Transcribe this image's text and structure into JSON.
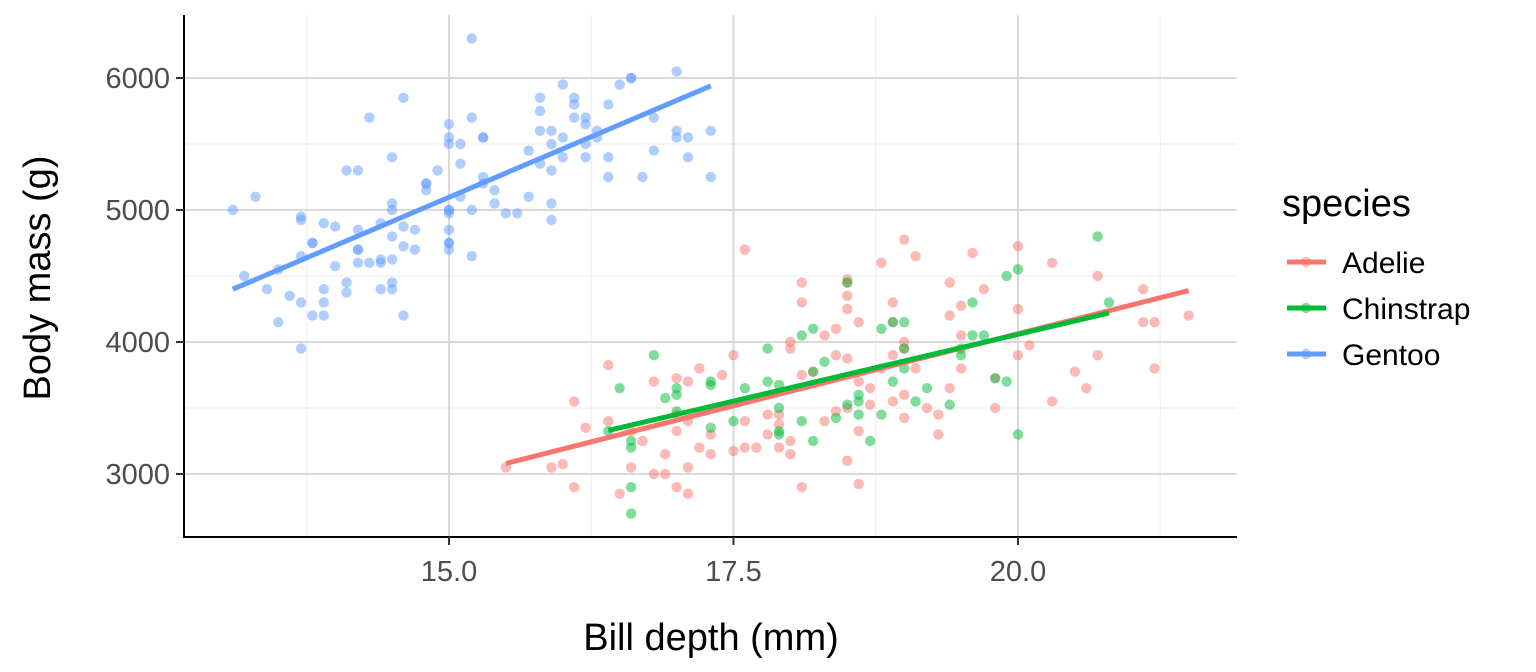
{
  "chart_data": {
    "type": "scatter",
    "title": "",
    "xlabel": "Bill depth (mm)",
    "ylabel": "Body mass (g)",
    "xlim": [
      12.7,
      21.7
    ],
    "ylim": [
      2500,
      6500
    ],
    "x_ticks": [
      15.0,
      17.5,
      20.0
    ],
    "x_tick_labels": [
      "15.0",
      "17.5",
      "20.0"
    ],
    "y_ticks": [
      3000,
      4000,
      5000,
      6000
    ],
    "y_tick_labels": [
      "3000",
      "4000",
      "5000",
      "6000"
    ],
    "grid": true,
    "legend": {
      "title": "species",
      "placement": "right"
    },
    "series": [
      {
        "name": "Adelie",
        "color": "#F8766D",
        "fit": {
          "x": [
            15.5,
            21.5
          ],
          "y": [
            3080,
            4390
          ]
        },
        "points": [
          [
            15.5,
            3050
          ],
          [
            15.9,
            3050
          ],
          [
            16.0,
            3075
          ],
          [
            16.1,
            2900
          ],
          [
            16.1,
            3550
          ],
          [
            16.2,
            3350
          ],
          [
            16.4,
            3400
          ],
          [
            16.4,
            3825
          ],
          [
            16.5,
            2850
          ],
          [
            16.6,
            3050
          ],
          [
            16.6,
            3325
          ],
          [
            16.7,
            3250
          ],
          [
            16.8,
            3000
          ],
          [
            16.8,
            3700
          ],
          [
            16.9,
            3150
          ],
          [
            16.9,
            3000
          ],
          [
            17.0,
            3325
          ],
          [
            17.0,
            3450
          ],
          [
            17.0,
            3725
          ],
          [
            17.0,
            2900
          ],
          [
            17.1,
            3050
          ],
          [
            17.1,
            3400
          ],
          [
            17.1,
            3700
          ],
          [
            17.1,
            2850
          ],
          [
            17.2,
            3200
          ],
          [
            17.2,
            3800
          ],
          [
            17.3,
            3150
          ],
          [
            17.3,
            3300
          ],
          [
            17.4,
            3750
          ],
          [
            17.5,
            3175
          ],
          [
            17.5,
            3900
          ],
          [
            17.6,
            3200
          ],
          [
            17.6,
            3400
          ],
          [
            17.6,
            4700
          ],
          [
            17.7,
            3200
          ],
          [
            17.8,
            3300
          ],
          [
            17.8,
            3450
          ],
          [
            17.9,
            3200
          ],
          [
            17.9,
            3375
          ],
          [
            17.9,
            3450
          ],
          [
            18.0,
            3250
          ],
          [
            18.0,
            3150
          ],
          [
            18.0,
            3950
          ],
          [
            18.0,
            4000
          ],
          [
            18.1,
            2900
          ],
          [
            18.1,
            3750
          ],
          [
            18.1,
            4300
          ],
          [
            18.1,
            4450
          ],
          [
            18.2,
            3775
          ],
          [
            18.3,
            3400
          ],
          [
            18.3,
            4050
          ],
          [
            18.4,
            3475
          ],
          [
            18.4,
            3900
          ],
          [
            18.4,
            4100
          ],
          [
            18.5,
            3100
          ],
          [
            18.5,
            3500
          ],
          [
            18.5,
            3875
          ],
          [
            18.5,
            4250
          ],
          [
            18.5,
            4450
          ],
          [
            18.5,
            4475
          ],
          [
            18.5,
            4350
          ],
          [
            18.6,
            2925
          ],
          [
            18.6,
            3325
          ],
          [
            18.6,
            3700
          ],
          [
            18.6,
            4150
          ],
          [
            18.7,
            3525
          ],
          [
            18.7,
            3650
          ],
          [
            18.8,
            3800
          ],
          [
            18.8,
            4600
          ],
          [
            18.9,
            3550
          ],
          [
            18.9,
            3900
          ],
          [
            18.9,
            4150
          ],
          [
            18.9,
            4300
          ],
          [
            19.0,
            3425
          ],
          [
            19.0,
            3600
          ],
          [
            19.0,
            3950
          ],
          [
            19.0,
            4000
          ],
          [
            19.0,
            4775
          ],
          [
            19.1,
            3800
          ],
          [
            19.1,
            4650
          ],
          [
            19.2,
            3500
          ],
          [
            19.3,
            3450
          ],
          [
            19.3,
            3300
          ],
          [
            19.4,
            3650
          ],
          [
            19.4,
            4200
          ],
          [
            19.4,
            4450
          ],
          [
            19.5,
            3800
          ],
          [
            19.5,
            4050
          ],
          [
            19.5,
            4275
          ],
          [
            19.6,
            4675
          ],
          [
            19.7,
            4400
          ],
          [
            19.8,
            3500
          ],
          [
            19.8,
            3725
          ],
          [
            20.0,
            3900
          ],
          [
            20.0,
            4250
          ],
          [
            20.0,
            4725
          ],
          [
            20.1,
            3975
          ],
          [
            20.3,
            3550
          ],
          [
            20.3,
            4600
          ],
          [
            20.5,
            3775
          ],
          [
            20.6,
            3650
          ],
          [
            20.7,
            3900
          ],
          [
            20.7,
            4500
          ],
          [
            21.1,
            4150
          ],
          [
            21.1,
            4400
          ],
          [
            21.2,
            3800
          ],
          [
            21.2,
            4150
          ],
          [
            21.5,
            4200
          ]
        ]
      },
      {
        "name": "Chinstrap",
        "color": "#00BA38",
        "fit": {
          "x": [
            16.4,
            20.8
          ],
          "y": [
            3330,
            4220
          ]
        },
        "points": [
          [
            16.4,
            3325
          ],
          [
            16.5,
            3650
          ],
          [
            16.6,
            2700
          ],
          [
            16.6,
            2900
          ],
          [
            16.6,
            3250
          ],
          [
            16.6,
            3200
          ],
          [
            16.8,
            3900
          ],
          [
            16.9,
            3575
          ],
          [
            17.0,
            3475
          ],
          [
            17.0,
            3650
          ],
          [
            17.0,
            3600
          ],
          [
            17.3,
            3350
          ],
          [
            17.3,
            3675
          ],
          [
            17.3,
            3700
          ],
          [
            17.5,
            3400
          ],
          [
            17.6,
            3650
          ],
          [
            17.8,
            3700
          ],
          [
            17.8,
            3950
          ],
          [
            17.9,
            3300
          ],
          [
            17.9,
            3325
          ],
          [
            17.9,
            3500
          ],
          [
            17.9,
            3675
          ],
          [
            18.1,
            3400
          ],
          [
            18.1,
            4050
          ],
          [
            18.2,
            3775
          ],
          [
            18.2,
            3250
          ],
          [
            18.2,
            4100
          ],
          [
            18.3,
            3850
          ],
          [
            18.4,
            3425
          ],
          [
            18.5,
            3525
          ],
          [
            18.5,
            4450
          ],
          [
            18.6,
            3550
          ],
          [
            18.6,
            3450
          ],
          [
            18.6,
            3600
          ],
          [
            18.7,
            3250
          ],
          [
            18.8,
            3450
          ],
          [
            18.8,
            4100
          ],
          [
            18.9,
            3700
          ],
          [
            18.9,
            4150
          ],
          [
            19.0,
            3800
          ],
          [
            19.0,
            3950
          ],
          [
            19.0,
            4150
          ],
          [
            19.1,
            3550
          ],
          [
            19.2,
            3650
          ],
          [
            19.4,
            3525
          ],
          [
            19.5,
            3900
          ],
          [
            19.5,
            3950
          ],
          [
            19.6,
            4300
          ],
          [
            19.6,
            4050
          ],
          [
            19.7,
            4050
          ],
          [
            19.8,
            3725
          ],
          [
            19.9,
            3700
          ],
          [
            19.9,
            4500
          ],
          [
            20.0,
            3300
          ],
          [
            20.0,
            4550
          ],
          [
            20.7,
            4800
          ],
          [
            20.8,
            4300
          ]
        ]
      },
      {
        "name": "Gentoo",
        "color": "#619CFF",
        "fit": {
          "x": [
            13.1,
            17.3
          ],
          "y": [
            4400,
            5940
          ]
        },
        "points": [
          [
            13.1,
            5000
          ],
          [
            13.2,
            4500
          ],
          [
            13.3,
            5100
          ],
          [
            13.4,
            4400
          ],
          [
            13.5,
            4550
          ],
          [
            13.5,
            4150
          ],
          [
            13.6,
            4350
          ],
          [
            13.7,
            4300
          ],
          [
            13.7,
            4650
          ],
          [
            13.7,
            3950
          ],
          [
            13.7,
            4950
          ],
          [
            13.7,
            4925
          ],
          [
            13.8,
            4750
          ],
          [
            13.8,
            4750
          ],
          [
            13.8,
            4200
          ],
          [
            13.9,
            4900
          ],
          [
            13.9,
            4400
          ],
          [
            13.9,
            4300
          ],
          [
            13.9,
            4200
          ],
          [
            14.0,
            4575
          ],
          [
            14.0,
            4875
          ],
          [
            14.1,
            4375
          ],
          [
            14.1,
            4450
          ],
          [
            14.1,
            5300
          ],
          [
            14.2,
            4600
          ],
          [
            14.2,
            4700
          ],
          [
            14.2,
            4850
          ],
          [
            14.2,
            5300
          ],
          [
            14.2,
            4700
          ],
          [
            14.3,
            4600
          ],
          [
            14.3,
            5700
          ],
          [
            14.4,
            4400
          ],
          [
            14.4,
            4625
          ],
          [
            14.4,
            4600
          ],
          [
            14.4,
            4900
          ],
          [
            14.5,
            4450
          ],
          [
            14.5,
            4400
          ],
          [
            14.5,
            4800
          ],
          [
            14.5,
            4625
          ],
          [
            14.5,
            5000
          ],
          [
            14.5,
            5050
          ],
          [
            14.5,
            5400
          ],
          [
            14.6,
            4200
          ],
          [
            14.6,
            4725
          ],
          [
            14.6,
            4875
          ],
          [
            14.6,
            5850
          ],
          [
            14.7,
            4700
          ],
          [
            14.7,
            4850
          ],
          [
            14.8,
            5150
          ],
          [
            14.8,
            5200
          ],
          [
            14.8,
            5200
          ],
          [
            14.9,
            5300
          ],
          [
            15.0,
            4700
          ],
          [
            15.0,
            4750
          ],
          [
            15.0,
            4750
          ],
          [
            15.0,
            4850
          ],
          [
            15.0,
            4975
          ],
          [
            15.0,
            5000
          ],
          [
            15.0,
            5000
          ],
          [
            15.0,
            5500
          ],
          [
            15.0,
            5550
          ],
          [
            15.0,
            5650
          ],
          [
            15.1,
            5100
          ],
          [
            15.1,
            5350
          ],
          [
            15.1,
            5500
          ],
          [
            15.2,
            4650
          ],
          [
            15.2,
            5000
          ],
          [
            15.2,
            5700
          ],
          [
            15.2,
            6300
          ],
          [
            15.3,
            5200
          ],
          [
            15.3,
            5250
          ],
          [
            15.3,
            5550
          ],
          [
            15.3,
            5550
          ],
          [
            15.4,
            5050
          ],
          [
            15.4,
            5150
          ],
          [
            15.5,
            4975
          ],
          [
            15.6,
            4975
          ],
          [
            15.7,
            5100
          ],
          [
            15.7,
            5450
          ],
          [
            15.8,
            5350
          ],
          [
            15.8,
            5600
          ],
          [
            15.8,
            5750
          ],
          [
            15.8,
            5850
          ],
          [
            15.9,
            4925
          ],
          [
            15.9,
            5050
          ],
          [
            15.9,
            5300
          ],
          [
            15.9,
            5500
          ],
          [
            16.0,
            5400
          ],
          [
            16.0,
            5550
          ],
          [
            16.0,
            5950
          ],
          [
            16.1,
            5700
          ],
          [
            16.1,
            5800
          ],
          [
            16.1,
            5850
          ],
          [
            16.2,
            5400
          ],
          [
            16.2,
            5500
          ],
          [
            16.2,
            5650
          ],
          [
            16.3,
            5550
          ],
          [
            16.3,
            5600
          ],
          [
            16.4,
            5400
          ],
          [
            16.4,
            5800
          ],
          [
            16.5,
            5950
          ],
          [
            16.6,
            6000
          ],
          [
            16.6,
            6000
          ],
          [
            16.7,
            5250
          ],
          [
            16.8,
            5450
          ],
          [
            17.0,
            6050
          ],
          [
            17.0,
            5550
          ],
          [
            17.0,
            5600
          ],
          [
            17.1,
            5400
          ],
          [
            17.3,
            5250
          ],
          [
            17.3,
            5600
          ],
          [
            16.2,
            5700
          ],
          [
            16.8,
            5700
          ],
          [
            17.1,
            5550
          ],
          [
            15.9,
            5600
          ],
          [
            16.4,
            5250
          ]
        ]
      }
    ]
  }
}
